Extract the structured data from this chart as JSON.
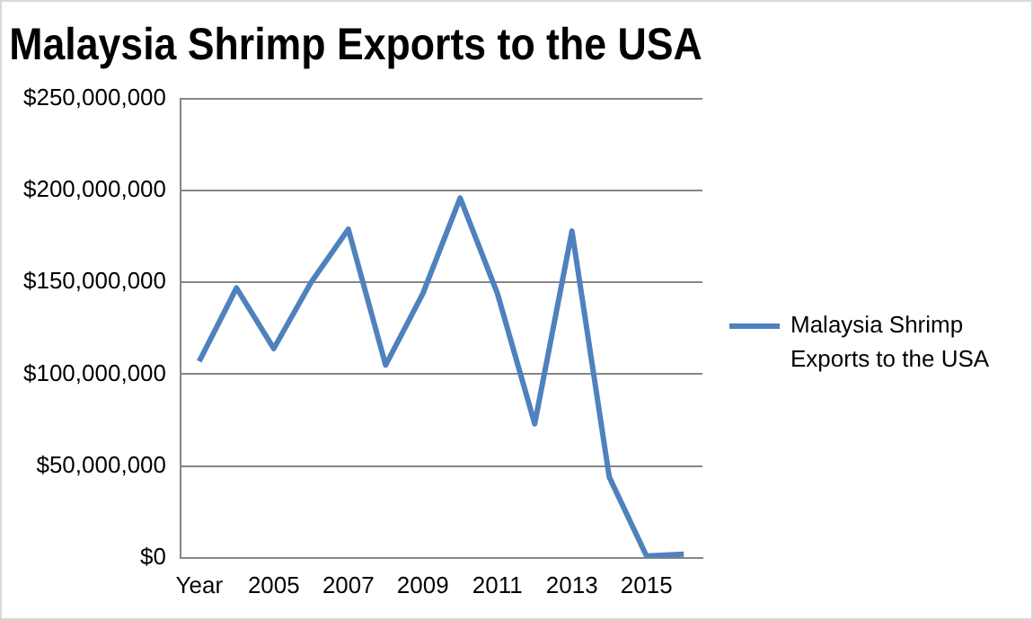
{
  "chart_data": {
    "type": "line",
    "title": "Malaysia Shrimp Exports to the USA",
    "categories": [
      "Year",
      null,
      "2005",
      null,
      "2007",
      null,
      "2009",
      null,
      "2011",
      null,
      "2013",
      null,
      "2015",
      null
    ],
    "series": [
      {
        "name": "Malaysia Shrimp Exports to the USA",
        "color": "#4f81bd",
        "values": [
          107000000,
          147000000,
          114000000,
          150000000,
          179000000,
          105000000,
          144000000,
          196000000,
          144000000,
          73000000,
          178000000,
          44000000,
          1000000,
          2000000
        ]
      }
    ],
    "ylim": [
      0,
      250000000
    ],
    "yticks": [
      {
        "value": 0,
        "label": "$0"
      },
      {
        "value": 50000000,
        "label": "$50,000,000"
      },
      {
        "value": 100000000,
        "label": "$100,000,000"
      },
      {
        "value": 150000000,
        "label": "$150,000,000"
      },
      {
        "value": 200000000,
        "label": "$200,000,000"
      },
      {
        "value": 250000000,
        "label": "$250,000,000"
      }
    ],
    "grid": "y",
    "legend": "right",
    "marker": "none",
    "line_style": "solid"
  }
}
